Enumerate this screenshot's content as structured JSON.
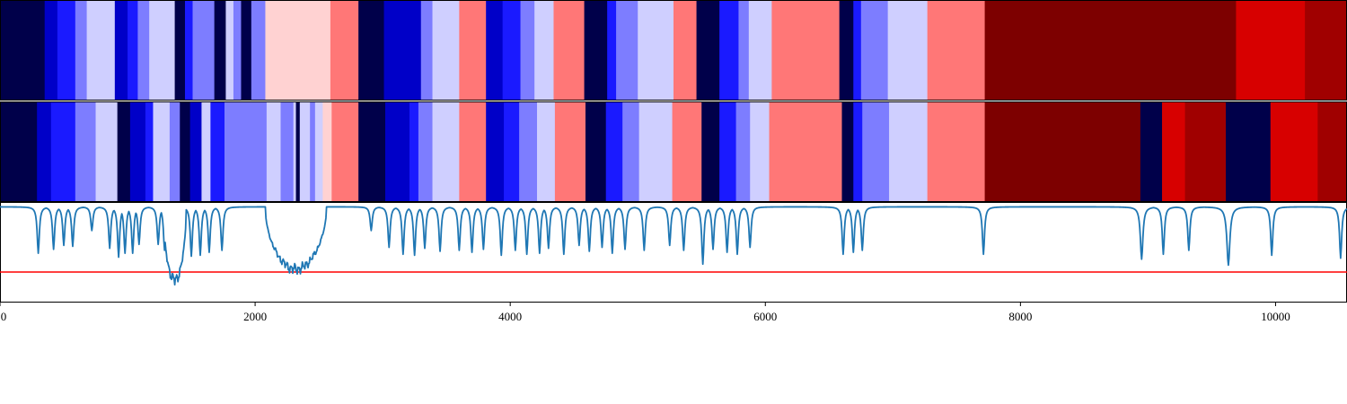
{
  "chart_data": {
    "type": "heatmap",
    "xlim": [
      0,
      10560
    ],
    "x_ticks": [
      0,
      2000,
      4000,
      6000,
      8000,
      10000
    ],
    "x_tick_labels": [
      "0",
      "2000",
      "4000",
      "6000",
      "8000",
      "10000"
    ],
    "palette": {
      "navy": "#00004a",
      "darkblue": "#0000c8",
      "blue": "#1a1aff",
      "midblue": "#7d7dff",
      "paleblue": "#cfcfff",
      "palepink": "#ffd2d2",
      "salmon": "#ff7777",
      "red": "#d70000",
      "darkred": "#a00000",
      "maroon": "#7d0000"
    },
    "strips": [
      {
        "segments": [
          [
            0,
            350,
            "navy"
          ],
          [
            350,
            450,
            "darkblue"
          ],
          [
            450,
            590,
            "blue"
          ],
          [
            590,
            680,
            "midblue"
          ],
          [
            680,
            900,
            "paleblue"
          ],
          [
            900,
            1000,
            "darkblue"
          ],
          [
            1000,
            1080,
            "blue"
          ],
          [
            1080,
            1170,
            "midblue"
          ],
          [
            1170,
            1370,
            "paleblue"
          ],
          [
            1370,
            1450,
            "navy"
          ],
          [
            1450,
            1510,
            "blue"
          ],
          [
            1510,
            1680,
            "midblue"
          ],
          [
            1680,
            1770,
            "navy"
          ],
          [
            1770,
            1830,
            "paleblue"
          ],
          [
            1830,
            1890,
            "midblue"
          ],
          [
            1890,
            1970,
            "navy"
          ],
          [
            1970,
            2080,
            "midblue"
          ],
          [
            2080,
            2590,
            "palepink"
          ],
          [
            2590,
            2810,
            "salmon"
          ],
          [
            2810,
            3010,
            "navy"
          ],
          [
            3010,
            3300,
            "darkblue"
          ],
          [
            3300,
            3390,
            "midblue"
          ],
          [
            3390,
            3600,
            "paleblue"
          ],
          [
            3600,
            3810,
            "salmon"
          ],
          [
            3810,
            3940,
            "darkblue"
          ],
          [
            3940,
            4080,
            "blue"
          ],
          [
            4080,
            4190,
            "midblue"
          ],
          [
            4190,
            4340,
            "paleblue"
          ],
          [
            4340,
            4580,
            "salmon"
          ],
          [
            4580,
            4760,
            "navy"
          ],
          [
            4760,
            4830,
            "blue"
          ],
          [
            4830,
            5000,
            "midblue"
          ],
          [
            5000,
            5280,
            "paleblue"
          ],
          [
            5280,
            5460,
            "salmon"
          ],
          [
            5460,
            5640,
            "navy"
          ],
          [
            5640,
            5790,
            "blue"
          ],
          [
            5790,
            5870,
            "midblue"
          ],
          [
            5870,
            6050,
            "paleblue"
          ],
          [
            6050,
            6580,
            "salmon"
          ],
          [
            6580,
            6690,
            "navy"
          ],
          [
            6690,
            6750,
            "blue"
          ],
          [
            6750,
            6960,
            "midblue"
          ],
          [
            6960,
            7270,
            "paleblue"
          ],
          [
            7270,
            7720,
            "salmon"
          ],
          [
            7720,
            9690,
            "maroon"
          ],
          [
            9690,
            10230,
            "red"
          ],
          [
            10230,
            10560,
            "darkred"
          ]
        ]
      },
      {
        "segments": [
          [
            0,
            290,
            "navy"
          ],
          [
            290,
            400,
            "darkblue"
          ],
          [
            400,
            590,
            "blue"
          ],
          [
            590,
            750,
            "midblue"
          ],
          [
            750,
            920,
            "paleblue"
          ],
          [
            920,
            1020,
            "navy"
          ],
          [
            1020,
            1140,
            "darkblue"
          ],
          [
            1140,
            1200,
            "blue"
          ],
          [
            1200,
            1330,
            "paleblue"
          ],
          [
            1330,
            1410,
            "midblue"
          ],
          [
            1410,
            1490,
            "navy"
          ],
          [
            1490,
            1580,
            "darkblue"
          ],
          [
            1580,
            1650,
            "paleblue"
          ],
          [
            1650,
            1760,
            "blue"
          ],
          [
            1760,
            2090,
            "midblue"
          ],
          [
            2090,
            2200,
            "paleblue"
          ],
          [
            2200,
            2300,
            "midblue"
          ],
          [
            2300,
            2320,
            "paleblue"
          ],
          [
            2320,
            2350,
            "navy"
          ],
          [
            2350,
            2430,
            "paleblue"
          ],
          [
            2430,
            2470,
            "midblue"
          ],
          [
            2470,
            2530,
            "paleblue"
          ],
          [
            2530,
            2600,
            "palepink"
          ],
          [
            2600,
            2810,
            "salmon"
          ],
          [
            2810,
            3020,
            "navy"
          ],
          [
            3020,
            3210,
            "darkblue"
          ],
          [
            3210,
            3280,
            "blue"
          ],
          [
            3280,
            3390,
            "midblue"
          ],
          [
            3390,
            3600,
            "paleblue"
          ],
          [
            3600,
            3810,
            "salmon"
          ],
          [
            3810,
            3950,
            "darkblue"
          ],
          [
            3950,
            4070,
            "blue"
          ],
          [
            4070,
            4210,
            "midblue"
          ],
          [
            4210,
            4350,
            "paleblue"
          ],
          [
            4350,
            4590,
            "salmon"
          ],
          [
            4590,
            4750,
            "navy"
          ],
          [
            4750,
            4880,
            "blue"
          ],
          [
            4880,
            5010,
            "midblue"
          ],
          [
            5010,
            5270,
            "paleblue"
          ],
          [
            5270,
            5500,
            "salmon"
          ],
          [
            5500,
            5640,
            "navy"
          ],
          [
            5640,
            5770,
            "blue"
          ],
          [
            5770,
            5880,
            "midblue"
          ],
          [
            5880,
            6030,
            "paleblue"
          ],
          [
            6030,
            6600,
            "salmon"
          ],
          [
            6600,
            6690,
            "navy"
          ],
          [
            6690,
            6760,
            "blue"
          ],
          [
            6760,
            6970,
            "midblue"
          ],
          [
            6970,
            7270,
            "paleblue"
          ],
          [
            7270,
            7720,
            "salmon"
          ],
          [
            7720,
            8940,
            "maroon"
          ],
          [
            8940,
            9110,
            "navy"
          ],
          [
            9110,
            9290,
            "red"
          ],
          [
            9290,
            9610,
            "darkred"
          ],
          [
            9610,
            9960,
            "navy"
          ],
          [
            9960,
            10330,
            "red"
          ],
          [
            10330,
            10560,
            "darkred"
          ]
        ]
      }
    ],
    "line_series": {
      "color": "#1f77b4",
      "ylim": [
        0,
        1
      ],
      "baseline": 0.96,
      "dips": [
        [
          300,
          0.49,
          10
        ],
        [
          420,
          0.53,
          10
        ],
        [
          500,
          0.57,
          10
        ],
        [
          570,
          0.56,
          10
        ],
        [
          720,
          0.72,
          10
        ],
        [
          860,
          0.54,
          10
        ],
        [
          930,
          0.45,
          10
        ],
        [
          980,
          0.49,
          10
        ],
        [
          1040,
          0.49,
          10
        ],
        [
          1090,
          0.58,
          10
        ],
        [
          1240,
          0.58,
          10
        ],
        [
          1290,
          0.52,
          10
        ],
        [
          1500,
          0.46,
          10
        ],
        [
          1570,
          0.47,
          10
        ],
        [
          1640,
          0.5,
          10
        ],
        [
          1740,
          0.52,
          10
        ],
        [
          2910,
          0.72,
          10
        ],
        [
          3050,
          0.55,
          10
        ],
        [
          3160,
          0.48,
          10
        ],
        [
          3250,
          0.47,
          10
        ],
        [
          3330,
          0.54,
          10
        ],
        [
          3450,
          0.51,
          10
        ],
        [
          3600,
          0.52,
          10
        ],
        [
          3700,
          0.5,
          10
        ],
        [
          3790,
          0.53,
          10
        ],
        [
          3930,
          0.47,
          10
        ],
        [
          4040,
          0.52,
          10
        ],
        [
          4130,
          0.48,
          10
        ],
        [
          4230,
          0.49,
          10
        ],
        [
          4300,
          0.54,
          10
        ],
        [
          4420,
          0.48,
          10
        ],
        [
          4540,
          0.57,
          10
        ],
        [
          4620,
          0.51,
          10
        ],
        [
          4720,
          0.55,
          10
        ],
        [
          4800,
          0.49,
          10
        ],
        [
          4900,
          0.53,
          10
        ],
        [
          5050,
          0.52,
          10
        ],
        [
          5250,
          0.57,
          10
        ],
        [
          5360,
          0.52,
          10
        ],
        [
          5510,
          0.38,
          10
        ],
        [
          5590,
          0.53,
          10
        ],
        [
          5700,
          0.5,
          10
        ],
        [
          5780,
          0.48,
          10
        ],
        [
          5880,
          0.55,
          10
        ],
        [
          6610,
          0.48,
          10
        ],
        [
          6690,
          0.5,
          10
        ],
        [
          6760,
          0.52,
          10
        ],
        [
          7710,
          0.48,
          10
        ],
        [
          8950,
          0.43,
          12
        ],
        [
          9120,
          0.48,
          10
        ],
        [
          9320,
          0.52,
          10
        ],
        [
          9630,
          0.37,
          14
        ],
        [
          9970,
          0.47,
          10
        ],
        [
          10510,
          0.44,
          10
        ]
      ],
      "noisy_regions": [
        {
          "x": [
            1280,
            1460
          ],
          "level": 0.22,
          "amplitude": 0.08
        },
        {
          "x": [
            2080,
            2560
          ],
          "level": 0.33,
          "amplitude": 0.07
        }
      ]
    },
    "threshold_line": {
      "y": 0.3,
      "color": "#ff0000"
    }
  }
}
